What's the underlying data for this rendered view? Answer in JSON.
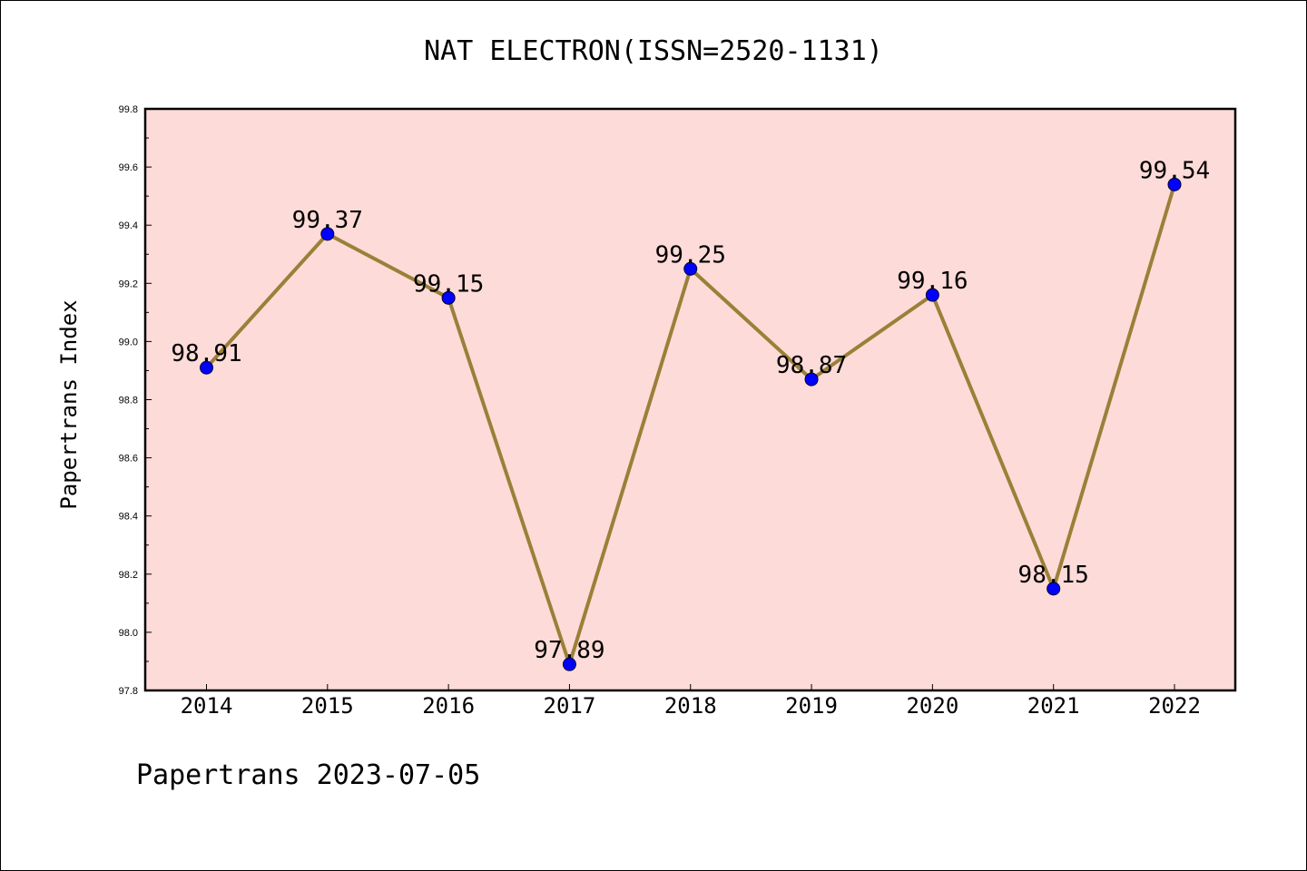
{
  "chart_data": {
    "type": "line",
    "title": "NAT ELECTRON(ISSN=2520-1131)",
    "xlabel": "",
    "ylabel": "Papertrans Index",
    "categories": [
      "2014",
      "2015",
      "2016",
      "2017",
      "2018",
      "2019",
      "2020",
      "2021",
      "2022"
    ],
    "series": [
      {
        "values": [
          98.91,
          99.37,
          99.15,
          97.89,
          99.25,
          98.87,
          99.16,
          98.15,
          99.54
        ]
      }
    ],
    "data_labels": [
      "98.91",
      "99.37",
      "99.15",
      "97.89",
      "99.25",
      "98.87",
      "99.16",
      "98.15",
      "99.54"
    ],
    "ylim": [
      97.8,
      99.8
    ],
    "yticks": [
      "97.8",
      "98.0",
      "98.2",
      "98.4",
      "98.6",
      "98.8",
      "99.0",
      "99.2",
      "99.4",
      "99.6",
      "99.8"
    ],
    "grid": false,
    "legend": "none",
    "colors": {
      "plot_background": "#fddbd8",
      "line": "#9a8038",
      "marker": "#0000ff"
    }
  },
  "footer": {
    "text": "Papertrans 2023-07-05"
  }
}
